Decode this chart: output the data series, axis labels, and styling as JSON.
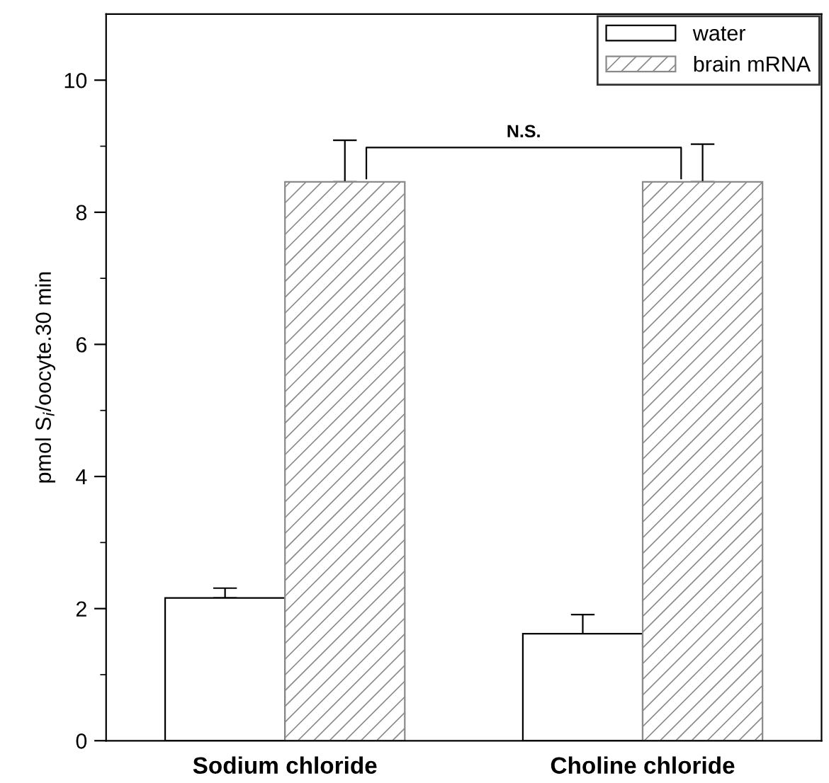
{
  "chart_data": {
    "type": "bar",
    "ylabel": "pmol S$_{i}$/oocyte.30 min",
    "categories": [
      "Sodium chloride",
      "Choline chloride"
    ],
    "series": [
      {
        "name": "water",
        "color": "#ffffff",
        "values": [
          2.16,
          1.62
        ],
        "errors": [
          [
            2.16,
            2.31
          ],
          [
            1.62,
            1.91
          ]
        ]
      },
      {
        "name": "brain mRNA",
        "color": "#8a8a8a",
        "values": [
          8.46,
          8.46
        ],
        "errors": [
          [
            8.46,
            9.09
          ],
          [
            8.46,
            9.03
          ]
        ]
      }
    ],
    "ylim": [
      0,
      11
    ],
    "yticks": [
      0,
      {
        "value": 1,
        "label": null
      },
      2,
      {
        "value": 3,
        "label": null
      },
      4,
      {
        "value": 5,
        "label": null
      },
      6,
      {
        "value": 7,
        "label": null
      },
      8,
      {
        "value": 9,
        "label": null
      },
      10
    ],
    "annotations": [
      {
        "text": "N.S."
      }
    ],
    "legend": "top right",
    "grid": false
  }
}
